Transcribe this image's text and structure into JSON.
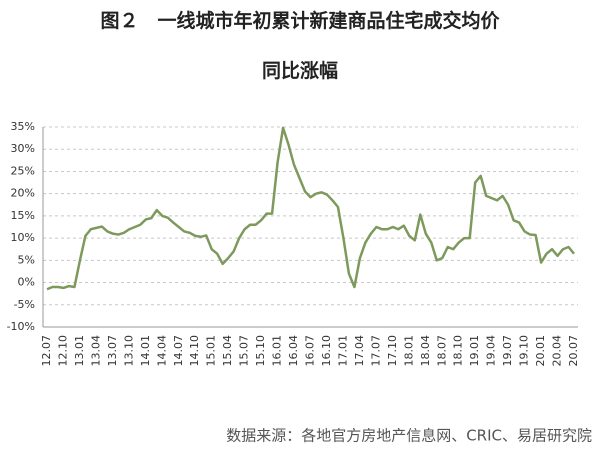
{
  "chart_data": {
    "type": "line",
    "title": [
      "图２　一线城市年初累计新建商品住宅成交均价",
      "同比涨幅"
    ],
    "source": "数据来源：各地官方房地产信息网、CRIC、易居研究院",
    "categories": [
      "12.07",
      null,
      null,
      "12.10",
      null,
      null,
      "13.01",
      null,
      null,
      "13.04",
      null,
      null,
      "13.07",
      null,
      null,
      "13.10",
      null,
      null,
      "14.01",
      null,
      null,
      "14.04",
      null,
      null,
      "14.07",
      null,
      null,
      "14.10",
      null,
      null,
      "15.01",
      null,
      null,
      "15.04",
      null,
      null,
      "15.07",
      null,
      null,
      "15.10",
      null,
      null,
      "16.01",
      null,
      null,
      "16.04",
      null,
      null,
      "16.07",
      null,
      null,
      "16.10",
      null,
      null,
      "17.01",
      null,
      null,
      "17.04",
      null,
      null,
      "17.07",
      null,
      null,
      "17.10",
      null,
      null,
      "18.01",
      null,
      null,
      "18.04",
      null,
      null,
      "18.07",
      null,
      null,
      "18.10",
      null,
      null,
      "19.01",
      null,
      null,
      "19.04",
      null,
      null,
      "19.07",
      null,
      null,
      "19.10",
      null,
      null,
      "20.01",
      null,
      null,
      "20.04",
      null,
      null,
      "20.07"
    ],
    "series": [
      {
        "color": "#7d9a5c",
        "values": [
          -1.5,
          -1,
          -1,
          -1.2,
          -0.8,
          -1,
          5,
          10.5,
          12,
          12.3,
          12.6,
          11.5,
          11,
          10.8,
          11.2,
          12,
          12.5,
          13,
          14.2,
          14.5,
          16.3,
          15,
          14.6,
          13.5,
          12.5,
          11.5,
          11.2,
          10.5,
          10.3,
          10.6,
          7.5,
          6.5,
          4.2,
          5.5,
          7,
          10,
          12,
          13,
          13,
          14,
          15.5,
          15.5,
          27,
          34.8,
          31,
          26.5,
          23.5,
          20.5,
          19.2,
          20,
          20.3,
          19.8,
          18.5,
          17,
          10,
          2,
          -1,
          5.5,
          9,
          11,
          12.5,
          12,
          12,
          12.5,
          12,
          12.8,
          10.5,
          9.5,
          15.3,
          11,
          9,
          5,
          5.5,
          8,
          7.5,
          9,
          10,
          10,
          22.5,
          24,
          19.5,
          19,
          18.5,
          19.5,
          17.5,
          14,
          13.5,
          11.5,
          10.8,
          10.7,
          4.5,
          6.5,
          7.5,
          6,
          7.5,
          8,
          6.5
        ]
      }
    ],
    "ylim": [
      -10,
      35
    ],
    "yticks": [
      {
        "value": -10,
        "label": "-10%"
      },
      {
        "value": -5,
        "label": "-5%"
      },
      {
        "value": 0,
        "label": "0%"
      },
      {
        "value": 5,
        "label": "5%"
      },
      {
        "value": 10,
        "label": "10%"
      },
      {
        "value": 15,
        "label": "15%"
      },
      {
        "value": 20,
        "label": "20%"
      },
      {
        "value": 25,
        "label": "25%"
      },
      {
        "value": 30,
        "label": "30%"
      },
      {
        "value": 35,
        "label": "35%"
      }
    ],
    "grid": true
  }
}
